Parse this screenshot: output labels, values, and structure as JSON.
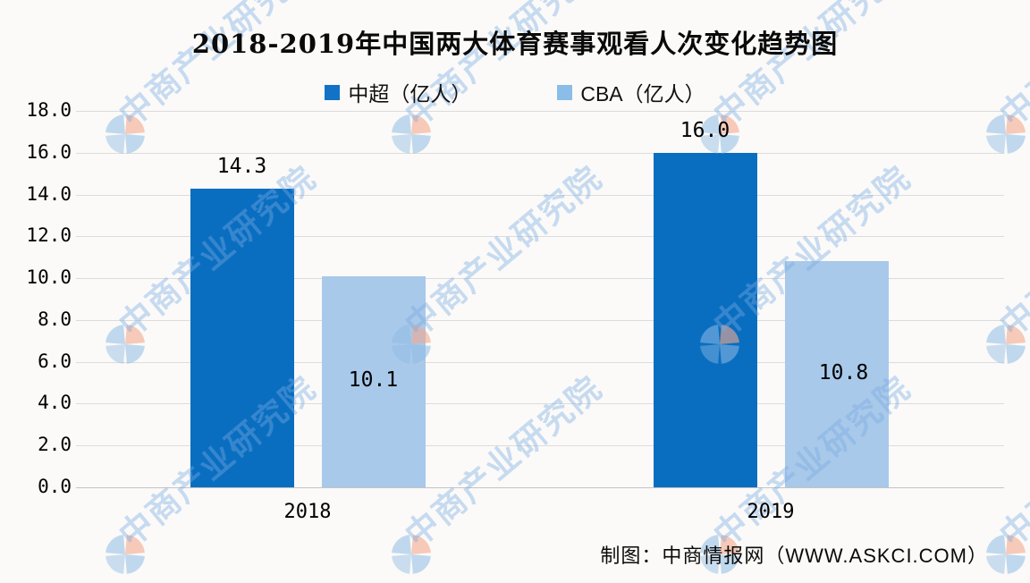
{
  "title": "2018-2019年中国两大体育赛事观看人次变化趋势图",
  "legend": {
    "items": [
      {
        "label": "中超（亿人）",
        "color": "#1272c6"
      },
      {
        "label": "CBA（亿人）",
        "color": "#8abde8"
      }
    ]
  },
  "footer": {
    "credit": "制图：中商情报网（WWW.ASKCI.COM）"
  },
  "watermark": {
    "text": "中商产业研究院",
    "logo_blue": "#8fbbe4",
    "logo_salmon": "#f3a88f"
  },
  "chart_data": {
    "type": "bar",
    "title": "2018-2019年中国两大体育赛事观看人次变化趋势图",
    "categories": [
      "2018",
      "2019"
    ],
    "series": [
      {
        "name": "中超（亿人）",
        "color": "#0a6ec0",
        "values": [
          14.3,
          16.0
        ],
        "value_label_position": "above"
      },
      {
        "name": "CBA（亿人）",
        "color": "#a8c9e9",
        "values": [
          10.1,
          10.8
        ],
        "value_label_position": "inside"
      }
    ],
    "ylim": [
      0,
      18
    ],
    "yticks": [
      0,
      2,
      4,
      6,
      8,
      10,
      12,
      14,
      16,
      18
    ],
    "ytick_format": "one_decimal",
    "grid": true,
    "legend_position": "top",
    "xlabel": "",
    "ylabel": ""
  }
}
